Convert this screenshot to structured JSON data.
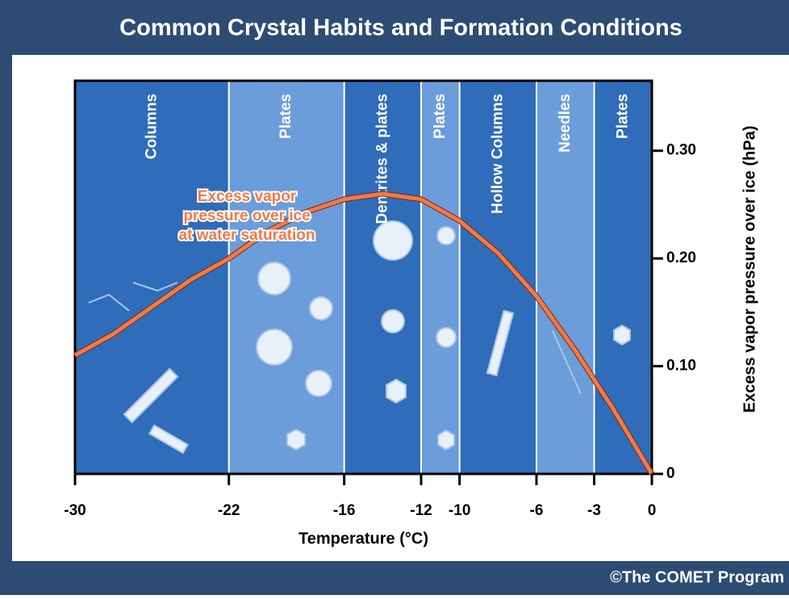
{
  "chart_data": {
    "type": "line",
    "title": "Common Crystal Habits and Formation Conditions",
    "x_label": "Temperature (°C)",
    "y_label": "Excess vapor pressure over ice (hPa)",
    "credit": "©The COMET Program",
    "annotation": [
      "Excess vapor",
      "pressure over ice",
      "at water saturation"
    ],
    "xlim": [
      -30,
      0
    ],
    "xticks": [
      -30,
      -22,
      -16,
      -12,
      -10,
      -6,
      -3,
      0
    ],
    "ylim": [
      0,
      0.365
    ],
    "yticks": [
      0,
      {
        "value": 0.1,
        "label": "0.10"
      },
      {
        "value": 0.2,
        "label": "0.20"
      },
      {
        "value": 0.3,
        "label": "0.30"
      }
    ],
    "bands": [
      {
        "label": "Columns",
        "from": -30,
        "to": -22,
        "color": "#2f6cba"
      },
      {
        "label": "Plates",
        "from": -22,
        "to": -16,
        "color": "#6b9ddb"
      },
      {
        "label": "Dentrites & plates",
        "from": -16,
        "to": -12,
        "color": "#2f6cba"
      },
      {
        "label": "Plates",
        "from": -12,
        "to": -10,
        "color": "#6b9ddb"
      },
      {
        "label": "Hollow Columns",
        "from": -10,
        "to": -6,
        "color": "#2f6cba"
      },
      {
        "label": "Needles",
        "from": -6,
        "to": -3,
        "color": "#6b9ddb"
      },
      {
        "label": "Plates",
        "from": -3,
        "to": 0,
        "color": "#2f6cba"
      }
    ],
    "x": [
      -30,
      -28,
      -26,
      -24,
      -22,
      -20,
      -18,
      -16,
      -14,
      -12,
      -10,
      -8,
      -6,
      -4,
      -2,
      0
    ],
    "series": [
      {
        "color": "#f07a48",
        "values": [
          0.11,
          0.13,
          0.155,
          0.18,
          0.2,
          0.225,
          0.243,
          0.255,
          0.26,
          0.255,
          0.235,
          0.205,
          0.165,
          0.115,
          0.06,
          0
        ]
      }
    ]
  }
}
